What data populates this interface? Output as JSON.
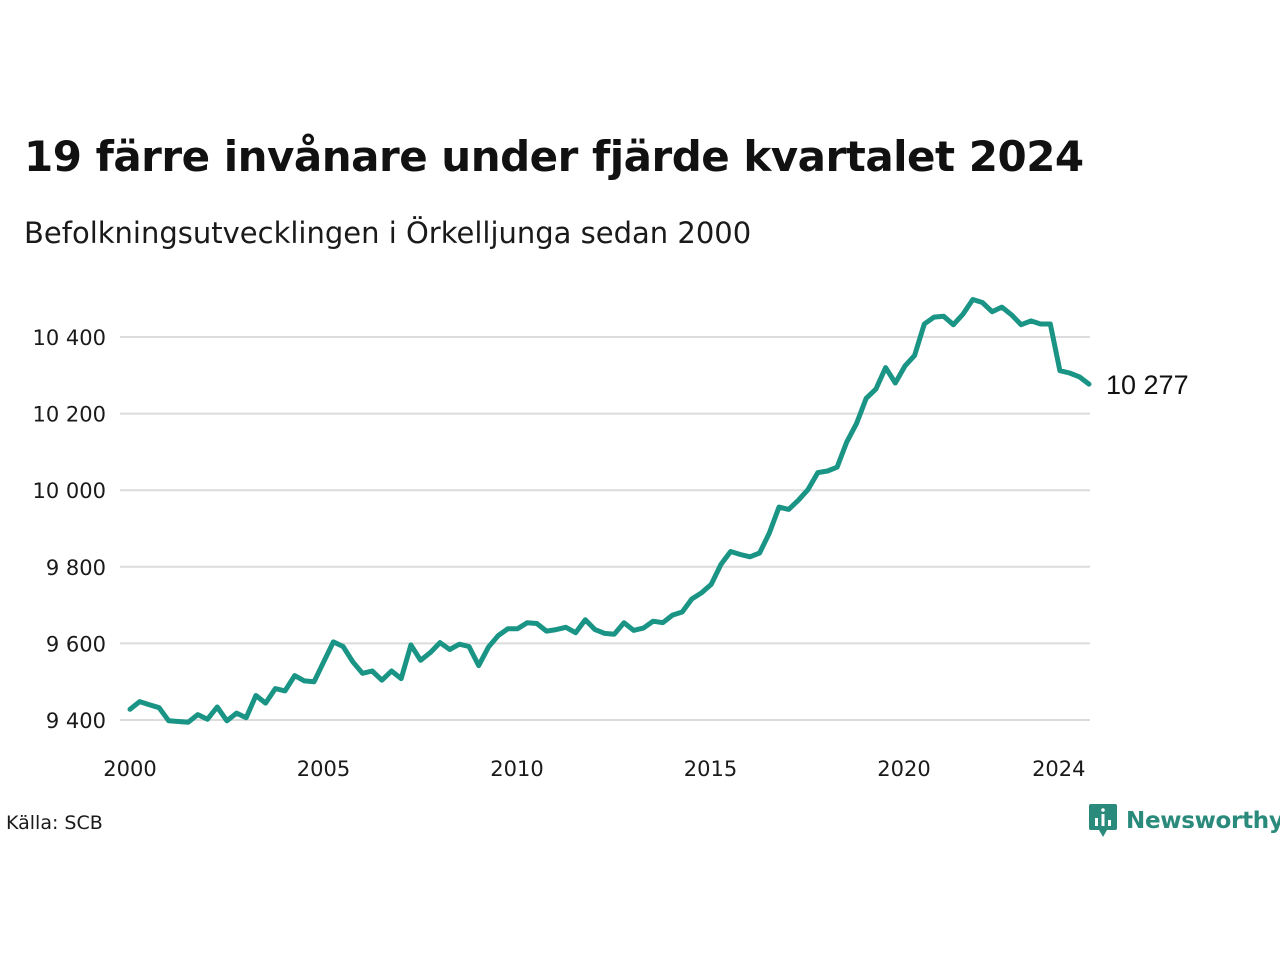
{
  "title": "19 färre invånare under fjärde kvartalet 2024",
  "subtitle": "Befolkningsutvecklingen i Örkelljunga sedan 2000",
  "source": "Källa: SCB",
  "brand": {
    "name": "Newsworthy",
    "icon": "newsworthy-logo-icon",
    "color": "#2a8a7b"
  },
  "chart_data": {
    "type": "line",
    "color": "#1a9484",
    "grid": true,
    "ylim": [
      9400,
      10500
    ],
    "yticks": [
      9400,
      9600,
      9800,
      10000,
      10200,
      10400
    ],
    "ytick_labels": [
      "9 400",
      "9 600",
      "9 800",
      "10 000",
      "10 200",
      "10 400"
    ],
    "xticks": [
      2000,
      2005,
      2010,
      2015,
      2020,
      2024
    ],
    "xtick_labels": [
      "2000",
      "2005",
      "2010",
      "2015",
      "2020",
      "2024"
    ],
    "end_label": "10 277",
    "series": [
      {
        "x_start": "2000 Q1",
        "values": [
          9428,
          9448,
          9440,
          9432,
          9398,
          9396,
          9394,
          9414,
          9402,
          9434,
          9398,
          9418,
          9406,
          9464,
          9444,
          9482,
          9476,
          9516,
          9502,
          9500,
          9552,
          9604,
          9592,
          9552,
          9522,
          9528,
          9504,
          9528,
          9508,
          9596,
          9556,
          9576,
          9602,
          9584,
          9598,
          9592,
          9542,
          9590,
          9620,
          9638,
          9638,
          9654,
          9652,
          9632,
          9636,
          9642,
          9628,
          9662,
          9636,
          9626,
          9624,
          9654,
          9634,
          9640,
          9658,
          9654,
          9674,
          9682,
          9716,
          9732,
          9754,
          9806,
          9840,
          9832,
          9826,
          9836,
          9888,
          9956,
          9950,
          9974,
          10002,
          10046,
          10050,
          10060,
          10126,
          10174,
          10240,
          10264,
          10320,
          10280,
          10324,
          10352,
          10434,
          10452,
          10454,
          10432,
          10460,
          10498,
          10490,
          10466,
          10478,
          10458,
          10432,
          10442,
          10434,
          10434,
          10312,
          10306,
          10296,
          10277
        ]
      }
    ]
  }
}
